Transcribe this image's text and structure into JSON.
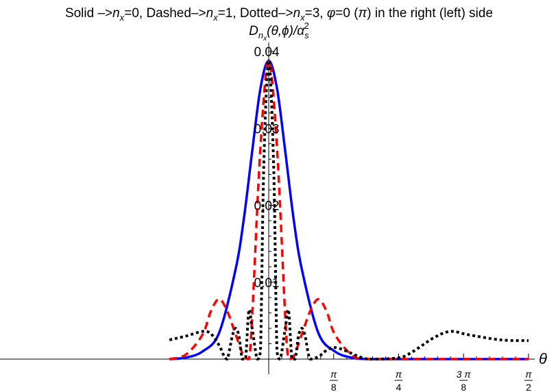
{
  "chart_data": {
    "type": "line",
    "title": "Solid ->n_x=0, Dashed->n_x=1, Dotted->n_x=3, φ=0 (π) in  the right  (left) side",
    "title_parts": {
      "solid": "Solid ",
      "arrow1": "–>",
      "n1": "n",
      "x1": "x",
      "eq0": "=0, Dashed",
      "arrow2": "–>",
      "n2": "n",
      "x2": "x",
      "eq1": "=1, Dotted",
      "arrow3": "–>",
      "n3": "n",
      "x3": "x",
      "eq3": "=3, ",
      "phi": "φ",
      "eq_phi": "=0 (",
      "pi": "π",
      "tail": ") in  the right  (left) side"
    },
    "ylabel_parts": {
      "D": "D",
      "n": "n",
      "x": "x",
      "args": "(θ,ϕ)/",
      "alpha": "α",
      "s": "s",
      "sq": "2"
    },
    "xlabel": "θ",
    "x_range": [
      -0.6,
      1.5708
    ],
    "ylim": [
      0,
      0.04
    ],
    "y_ticks": [
      {
        "value": 0.01,
        "label": "0.01"
      },
      {
        "value": 0.02,
        "label": "0.02"
      },
      {
        "value": 0.03,
        "label": "0.03"
      },
      {
        "value": 0.04,
        "label": "0.04"
      }
    ],
    "x_ticks": [
      {
        "value": 0.3927,
        "num": "π",
        "den": "8"
      },
      {
        "value": 0.7854,
        "num": "π",
        "den": "4"
      },
      {
        "value": 1.1781,
        "num": "3 π",
        "den": "8"
      },
      {
        "value": 1.5708,
        "num": "π",
        "den": "2"
      }
    ],
    "peak_value": 0.0388,
    "series": [
      {
        "style": "solid",
        "color": "#0000ff",
        "points": [
          [
            -0.6,
            0.0
          ],
          [
            -0.5,
            0.0002
          ],
          [
            -0.4,
            0.001
          ],
          [
            -0.3,
            0.0034
          ],
          [
            -0.2,
            0.0117
          ],
          [
            -0.15,
            0.0183
          ],
          [
            -0.1,
            0.027
          ],
          [
            -0.05,
            0.0352
          ],
          [
            0.0,
            0.0388
          ],
          [
            0.05,
            0.0352
          ],
          [
            0.1,
            0.027
          ],
          [
            0.15,
            0.0183
          ],
          [
            0.2,
            0.0117
          ],
          [
            0.3,
            0.0034
          ],
          [
            0.4,
            0.001
          ],
          [
            0.5,
            0.0002
          ],
          [
            0.6,
            0.0
          ],
          [
            0.8,
            0.0
          ],
          [
            1.0,
            0.0
          ],
          [
            1.5708,
            0.0
          ]
        ]
      },
      {
        "style": "dashed",
        "color": "#ff0000",
        "points": [
          [
            -0.6,
            0.0
          ],
          [
            -0.5,
            0.0006
          ],
          [
            -0.4,
            0.0032
          ],
          [
            -0.35,
            0.0062
          ],
          [
            -0.3,
            0.0078
          ],
          [
            -0.25,
            0.0062
          ],
          [
            -0.2,
            0.0032
          ],
          [
            -0.15,
            0.0003
          ],
          [
            -0.12,
            0.0
          ],
          [
            -0.1,
            0.0055
          ],
          [
            -0.05,
            0.0275
          ],
          [
            0.0,
            0.0388
          ],
          [
            0.05,
            0.0275
          ],
          [
            0.1,
            0.0055
          ],
          [
            0.12,
            0.0
          ],
          [
            0.15,
            0.0003
          ],
          [
            0.2,
            0.0032
          ],
          [
            0.25,
            0.0062
          ],
          [
            0.3,
            0.0078
          ],
          [
            0.35,
            0.0062
          ],
          [
            0.4,
            0.0032
          ],
          [
            0.5,
            0.0006
          ],
          [
            0.6,
            0.0
          ],
          [
            1.0,
            0.0
          ],
          [
            1.5708,
            0.0
          ]
        ]
      },
      {
        "style": "dotted",
        "color": "#000000",
        "points": [
          [
            -0.6,
            0.0025
          ],
          [
            -0.5,
            0.003
          ],
          [
            -0.4,
            0.0036
          ],
          [
            -0.35,
            0.0033
          ],
          [
            -0.3,
            0.0018
          ],
          [
            -0.27,
            0.0004
          ],
          [
            -0.25,
            0.0
          ],
          [
            -0.22,
            0.003
          ],
          [
            -0.2,
            0.004
          ],
          [
            -0.18,
            0.003
          ],
          [
            -0.16,
            0.0
          ],
          [
            -0.14,
            0.0
          ],
          [
            -0.12,
            0.0063
          ],
          [
            -0.1,
            0.004
          ],
          [
            -0.07,
            0.0
          ],
          [
            -0.05,
            0.001
          ],
          [
            -0.03,
            0.025
          ],
          [
            0.0,
            0.0388
          ],
          [
            0.03,
            0.025
          ],
          [
            0.05,
            0.001
          ],
          [
            0.07,
            0.0
          ],
          [
            0.1,
            0.004
          ],
          [
            0.12,
            0.0063
          ],
          [
            0.14,
            0.0
          ],
          [
            0.16,
            0.0
          ],
          [
            0.18,
            0.003
          ],
          [
            0.2,
            0.004
          ],
          [
            0.22,
            0.003
          ],
          [
            0.25,
            0.0
          ],
          [
            0.3,
            0.0003
          ],
          [
            0.4,
            0.0015
          ],
          [
            0.6,
            0.0
          ],
          [
            0.8,
            0.0002
          ],
          [
            1.0,
            0.0028
          ],
          [
            1.1,
            0.0036
          ],
          [
            1.2,
            0.0032
          ],
          [
            1.4,
            0.0025
          ],
          [
            1.5708,
            0.0024
          ]
        ]
      }
    ]
  }
}
